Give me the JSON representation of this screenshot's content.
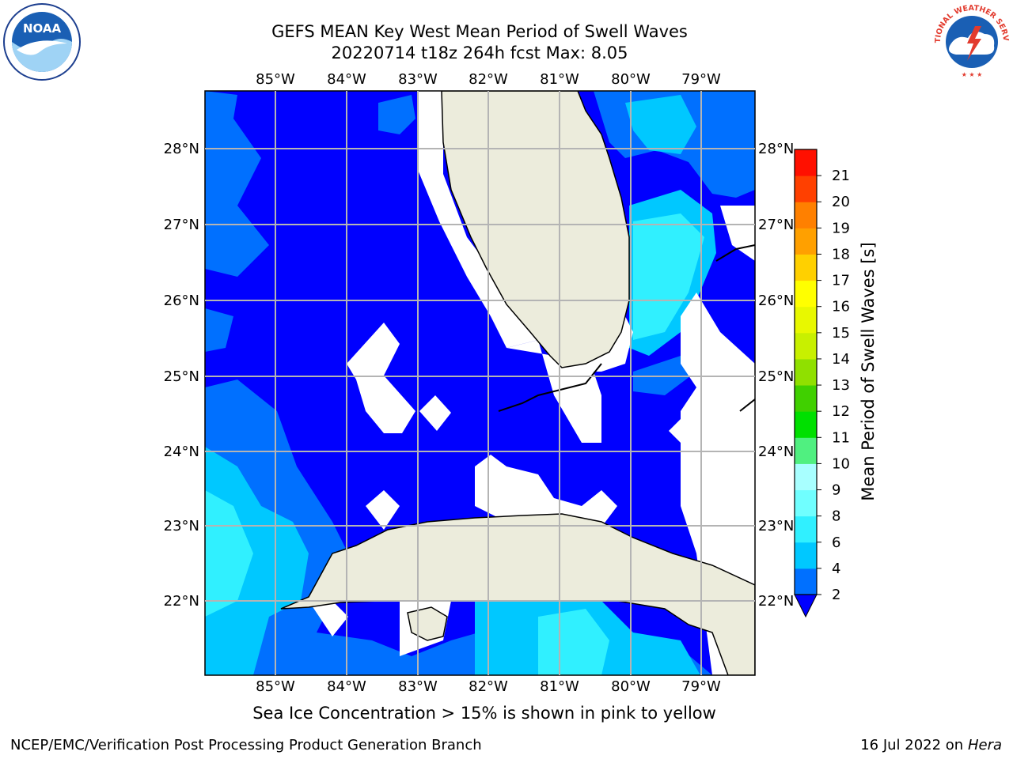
{
  "title_line1": "GEFS MEAN Key West Mean Period of Swell Waves",
  "title_line2": "20220714 t18z 264h fcst   Max: 8.05",
  "lon_labels": [
    "85°W",
    "84°W",
    "83°W",
    "82°W",
    "81°W",
    "80°W",
    "79°W"
  ],
  "lat_labels": [
    "28°N",
    "27°N",
    "26°N",
    "25°N",
    "24°N",
    "23°N",
    "22°N"
  ],
  "colorbar": {
    "label": "Mean Period of Swell Waves [s]",
    "ticks": [
      "2",
      "4",
      "6",
      "8",
      "9",
      "10",
      "11",
      "12",
      "13",
      "14",
      "15",
      "16",
      "17",
      "18",
      "19",
      "20",
      "21"
    ],
    "colors": [
      "#0070ff",
      "#00c8ff",
      "#30f0ff",
      "#70ffff",
      "#a8ffff",
      "#50f080",
      "#00e000",
      "#40d000",
      "#90e000",
      "#c8f000",
      "#e8f800",
      "#ffff00",
      "#ffd000",
      "#ffa000",
      "#ff8000",
      "#ff4000",
      "#ff1000"
    ],
    "under_color": "#0000ff"
  },
  "caption": "Sea Ice Concentration > 15% is shown in pink to yellow",
  "footer_left": "NCEP/EMC/Verification Post Processing Product Generation Branch",
  "footer_date": "16 Jul 2022 on",
  "footer_machine": "Hera",
  "logo_left_text": "NOAA",
  "logo_right_text": "NATIONAL WEATHER SERVICE"
}
